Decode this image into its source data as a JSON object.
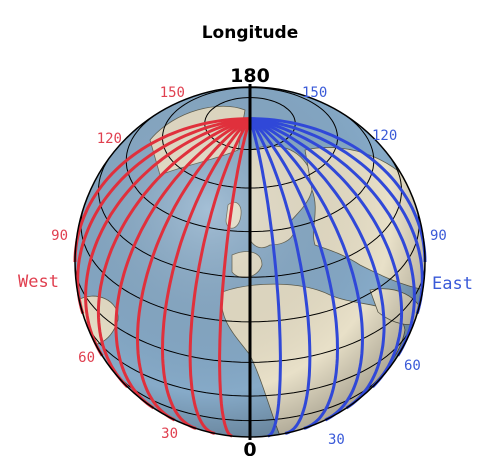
{
  "title": "Longitude",
  "meridians": {
    "top": "180",
    "bottom": "0"
  },
  "west": {
    "label": "West",
    "ticks": [
      "150",
      "120",
      "90",
      "60",
      "30"
    ],
    "color": "#e0303c"
  },
  "east": {
    "label": "East",
    "ticks": [
      "150",
      "120",
      "90",
      "60",
      "30"
    ],
    "color": "#3048d8"
  },
  "colors": {
    "ocean": "#86aac8",
    "land": "#e8e0c8",
    "line": "#000000"
  }
}
